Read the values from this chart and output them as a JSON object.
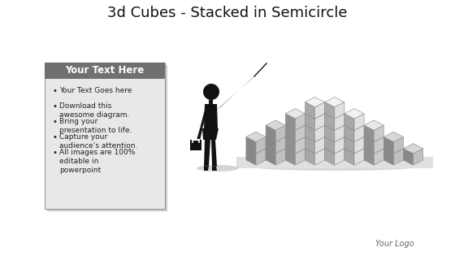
{
  "title": "3d Cubes - Stacked in Semicircle",
  "title_fontsize": 13,
  "background_color": "#ffffff",
  "text_box": {
    "header": "Your Text Here",
    "header_bg": "#707070",
    "header_color": "#ffffff",
    "body_bg": "#e8e8e8",
    "border_color": "#999999",
    "bullets": [
      "Your Text Goes here",
      "Download this\nawesome diagram.",
      "Bring your\npresentation to life.",
      "Capture your\naudience’s attention.",
      "All images are 100%\neditable in\npowerpoint"
    ],
    "bullet_fontsize": 6.5,
    "header_fontsize": 8.5
  },
  "logo_text": "Your Logo",
  "logo_fontsize": 7,
  "cube_top": "#f0f0f0",
  "cube_left": "#909090",
  "cube_right": "#d0d0d0",
  "cube_edge": "#888888",
  "floor_color": "#d8d8d8",
  "figure_color": "#111111",
  "shadow_color": "#bbbbbb"
}
